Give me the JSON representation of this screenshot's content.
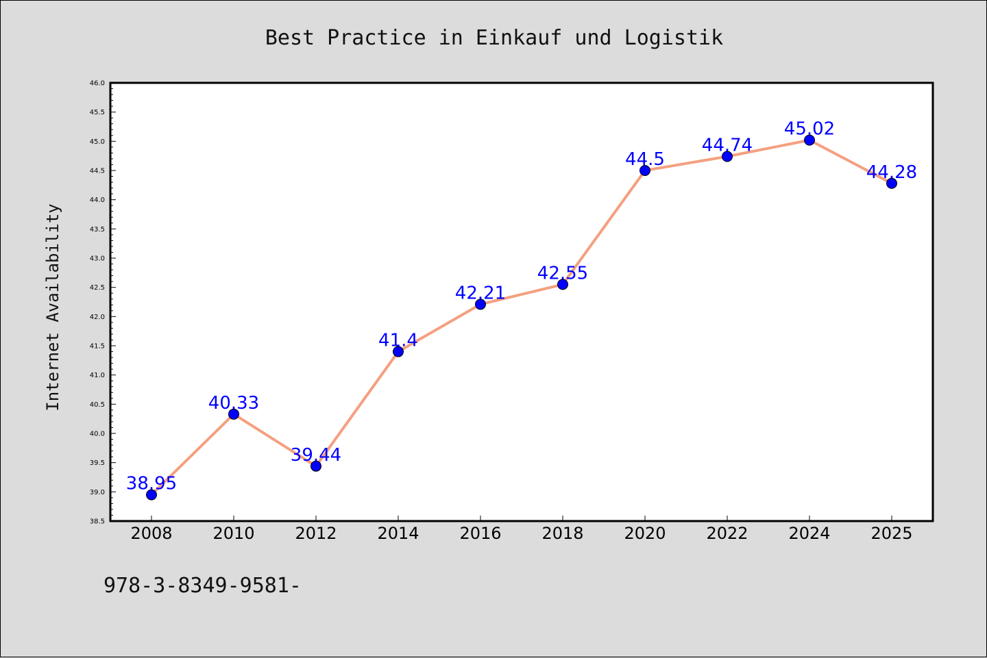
{
  "chart_data": {
    "type": "line",
    "title": "Best Practice in Einkauf und Logistik",
    "xlabel": "",
    "ylabel": "Internet Availability",
    "categories": [
      "2008",
      "2010",
      "2012",
      "2014",
      "2016",
      "2018",
      "2020",
      "2022",
      "2024",
      "2025"
    ],
    "series": [
      {
        "values": [
          38.95,
          40.33,
          39.44,
          41.4,
          42.21,
          42.55,
          44.5,
          44.74,
          45.02,
          44.28
        ],
        "labels": [
          "38.95",
          "40.33",
          "39.44",
          "41.4",
          "42.21",
          "42.55",
          "44.5",
          "44.74",
          "45.02",
          "44.28"
        ]
      }
    ],
    "ylim": [
      38.5,
      46.0
    ],
    "yticks": [
      "38.5",
      "39.0",
      "39.5",
      "40.0",
      "40.5",
      "41.0",
      "41.5",
      "42.0",
      "42.5",
      "43.0",
      "43.5",
      "44.0",
      "44.5",
      "45.0",
      "45.5",
      "46.0"
    ],
    "grid": false,
    "legend": "none",
    "colors": {
      "line": "#f4a080",
      "marker": "#0000ff",
      "label": "#0000ff",
      "plot_background": "#ffffff",
      "figure_background": "#dcdcdc"
    }
  },
  "footer": {
    "text": "978-3-8349-9581-"
  }
}
